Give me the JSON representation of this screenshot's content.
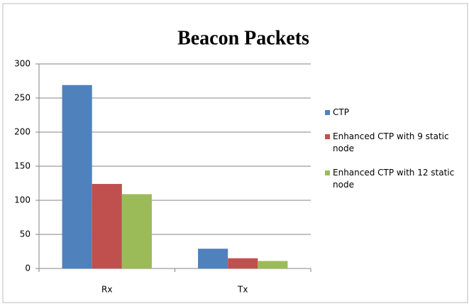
{
  "chart_data": {
    "type": "bar",
    "title": "Beacon Packets",
    "categories": [
      "Rx",
      "Tx"
    ],
    "series": [
      {
        "name": "CTP",
        "color": "#4f81bd",
        "values": [
          269,
          29
        ]
      },
      {
        "name": "Enhanced CTP with 9 static node",
        "color": "#c0504d",
        "values": [
          124,
          15
        ]
      },
      {
        "name": "Enhanced CTP with 12 static node",
        "color": "#9bbb59",
        "values": [
          109,
          11
        ]
      }
    ],
    "ylim": [
      0,
      300
    ],
    "yticks": [
      0,
      50,
      100,
      150,
      200,
      250,
      300
    ],
    "grid": true,
    "legend": "right"
  }
}
